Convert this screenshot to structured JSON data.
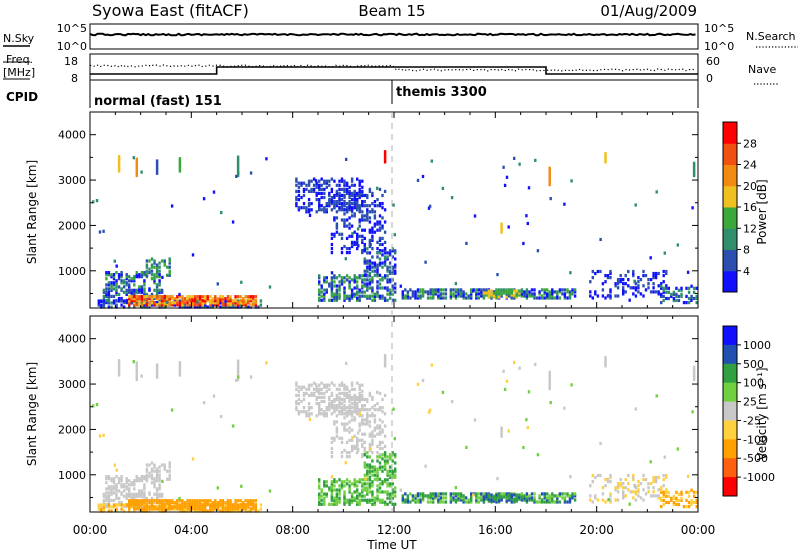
{
  "header": {
    "station": "Syowa East (fitACF)",
    "beam": "Beam 15",
    "date": "01/Aug/2009"
  },
  "labels": {
    "nsky": "N.Sky",
    "nsearch": "N.Search",
    "freq_line1": "Freq.",
    "freq_line2": "[MHz]",
    "nave": "Nave",
    "cpid": "CPID",
    "tick_1e5_left": "10^5",
    "tick_1e0_left": "10^0",
    "tick_1e5_right": "10^5",
    "tick_1e0_right": "10^0",
    "freq_tick_hi": "18",
    "freq_tick_lo": "8",
    "nave_tick_hi": "60",
    "nave_tick_lo": "0"
  },
  "cpid": {
    "left": "normal (fast) 151",
    "right": "themis 3300",
    "switch_hour": 12
  },
  "colors": {
    "power": [
      "#1010ff",
      "#2a4fb0",
      "#2f8f6a",
      "#3aa83a",
      "#f0c020",
      "#f08a10",
      "#f05010",
      "#ff0000"
    ],
    "velocity": [
      "#ff0000",
      "#ff6010",
      "#ffa000",
      "#ffd040",
      "#c8c8c8",
      "#70d040",
      "#30a040",
      "#2050b0",
      "#1010ff"
    ]
  },
  "chart_data": [
    {
      "type": "heatmap",
      "name": "power",
      "ylabel": "Slant Range [km]",
      "xlabel": "Time UT",
      "xlim": [
        0,
        24
      ],
      "ylim": [
        180,
        4500
      ],
      "yticks": [
        "1000",
        "2000",
        "3000",
        "4000"
      ],
      "xticks": [
        "00:00",
        "04:00",
        "08:00",
        "12:00",
        "16:00",
        "20:00",
        "00:00"
      ],
      "colorbar": {
        "label": "Power [dB]",
        "range": [
          0,
          32
        ],
        "ticks": [
          "4",
          "8",
          "12",
          "16",
          "20",
          "24",
          "28"
        ]
      }
    },
    {
      "type": "heatmap",
      "name": "velocity",
      "ylabel": "Slant Range [km]",
      "xlabel": "Time UT",
      "xlim": [
        0,
        24
      ],
      "ylim": [
        180,
        4500
      ],
      "yticks": [
        "1000",
        "2000",
        "3000",
        "4000"
      ],
      "xticks": [
        "00:00",
        "04:00",
        "08:00",
        "12:00",
        "16:00",
        "20:00",
        "00:00"
      ],
      "colorbar": {
        "label": "Velocity [m s⁻¹]",
        "ticks": [
          "1000",
          "500",
          "100",
          "25",
          "-25",
          "-100",
          "-500",
          "-1000"
        ]
      }
    }
  ]
}
